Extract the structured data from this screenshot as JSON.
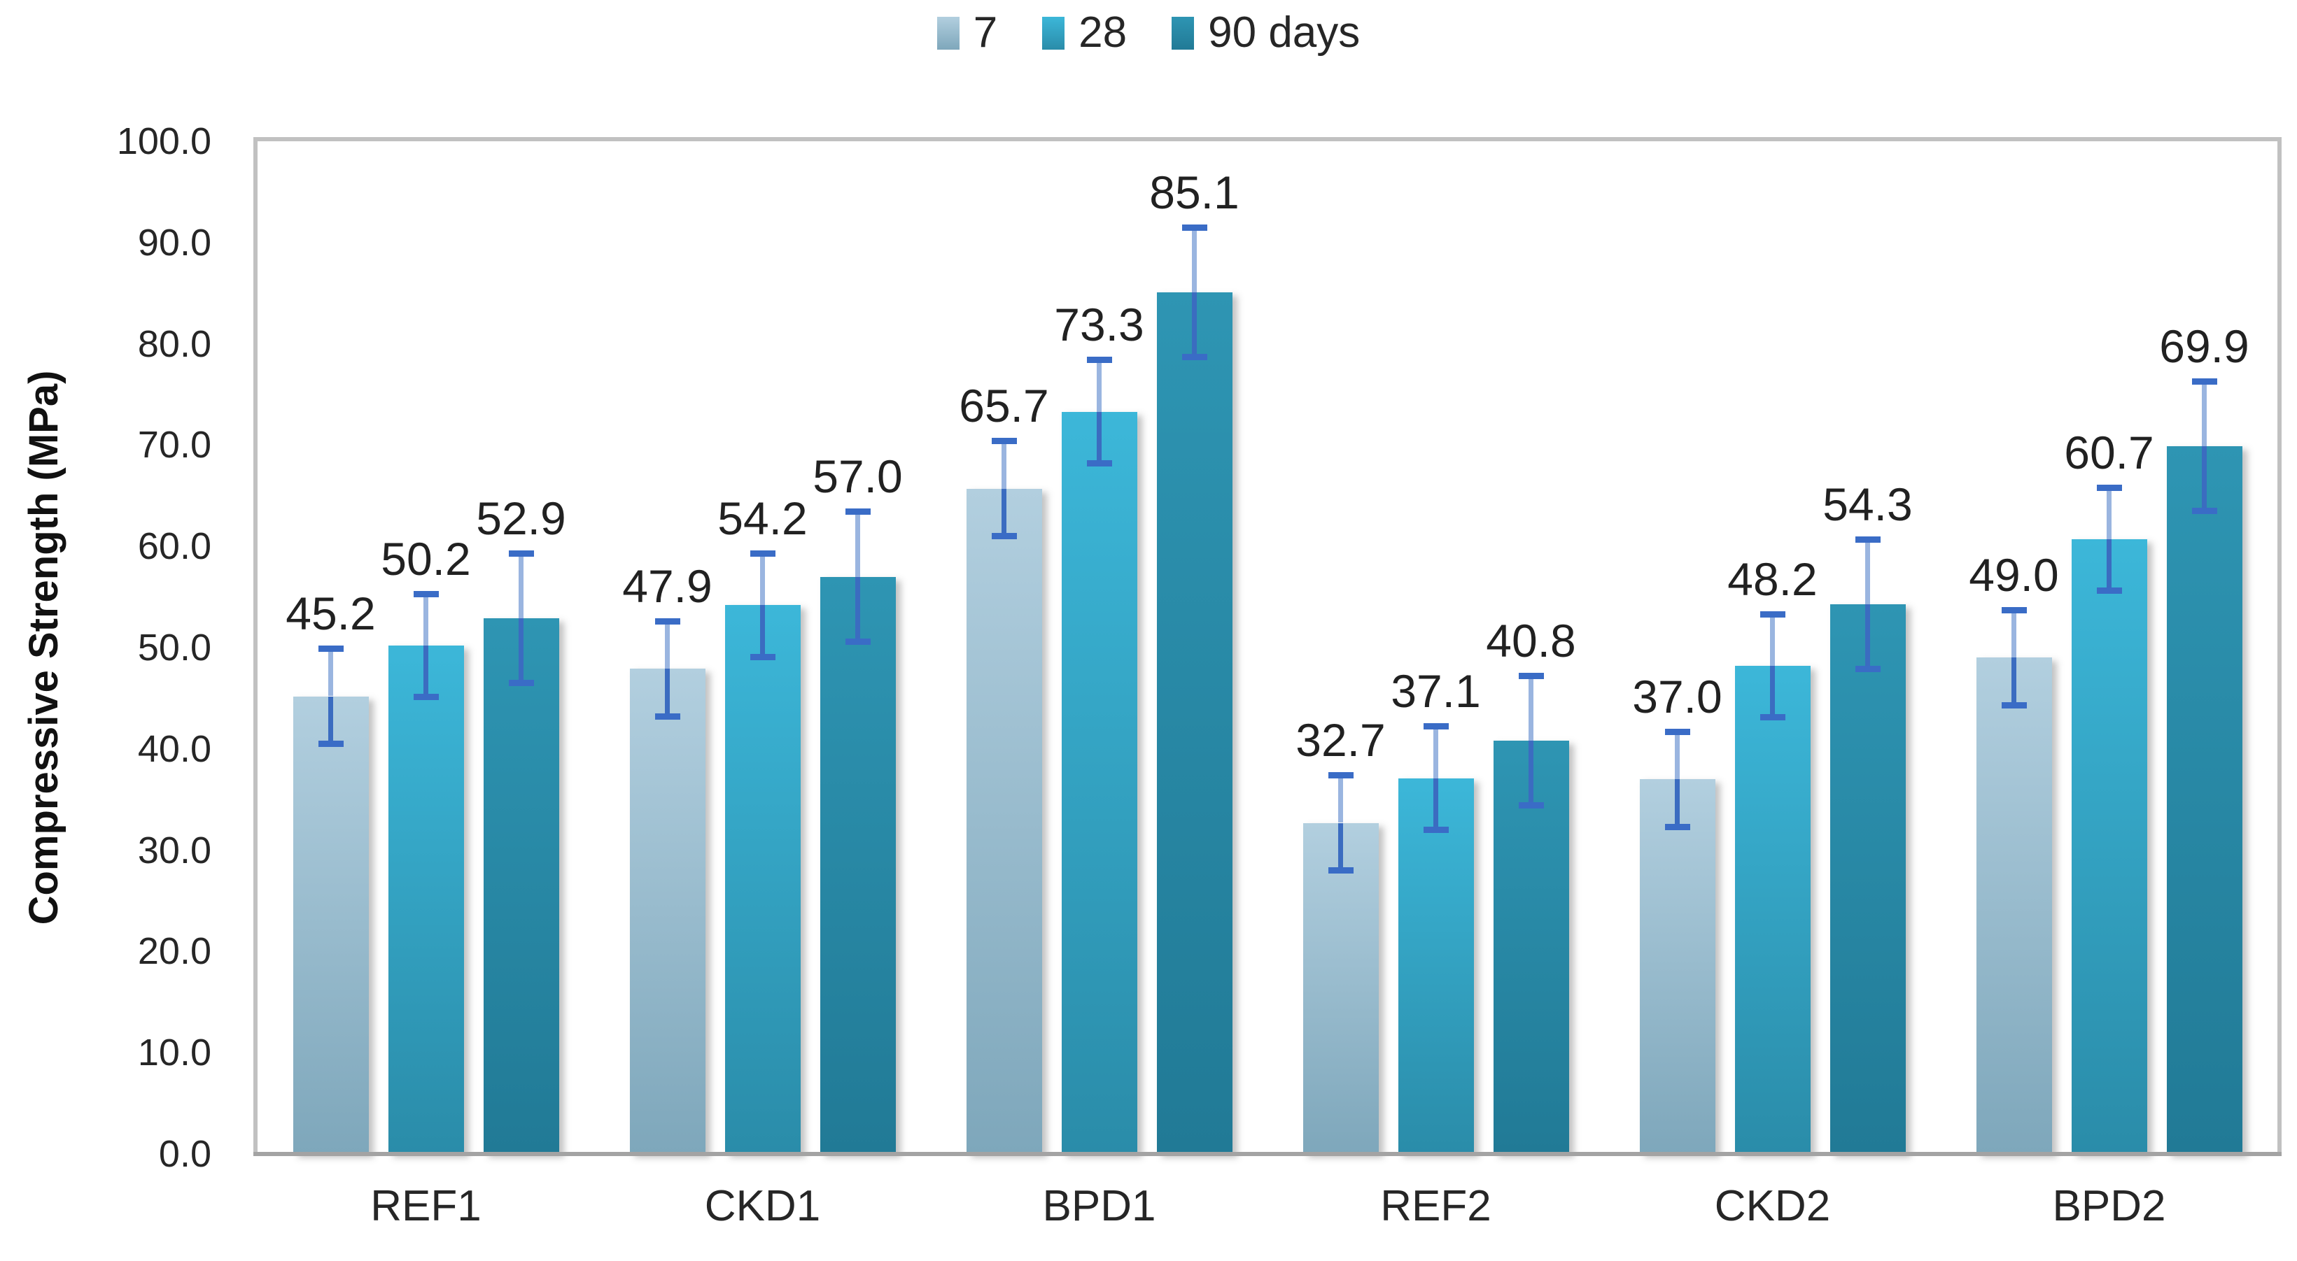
{
  "chart_data": {
    "type": "bar",
    "title": "",
    "xlabel": "",
    "ylabel": "Compressive Strength (MPa)",
    "ylim": [
      0,
      100
    ],
    "ytick_step": 10,
    "ytick_decimals": 1,
    "value_label_decimals": 1,
    "grid": false,
    "legend_position": "top",
    "categories": [
      "REF1",
      "CKD1",
      "BPD1",
      "REF2",
      "CKD2",
      "BPD2"
    ],
    "series": [
      {
        "name": "7",
        "values": [
          45.2,
          47.9,
          65.7,
          32.7,
          37.0,
          49.0
        ],
        "error": 4.7,
        "color_top": "#b2cfdf",
        "color_bottom": "#7ea7bb"
      },
      {
        "name": "28",
        "values": [
          50.2,
          54.2,
          73.3,
          37.1,
          48.2,
          60.7
        ],
        "error": 5.1,
        "color_top": "#3cb7d9",
        "color_bottom": "#2a8ca9"
      },
      {
        "name": "90 days",
        "values": [
          52.9,
          57.0,
          85.1,
          40.8,
          54.3,
          69.9
        ],
        "error": 6.4,
        "color_top": "#2e95b3",
        "color_bottom": "#217a96"
      }
    ]
  },
  "colors": {
    "error_stem_plus": "#9ab5e0",
    "error_stem_minus": "#3b6cc0",
    "error_cap": "#3a6cc6",
    "plot_frame": "#c1c1c1",
    "axis_line": "#a3a3a3",
    "text": "#262626"
  }
}
